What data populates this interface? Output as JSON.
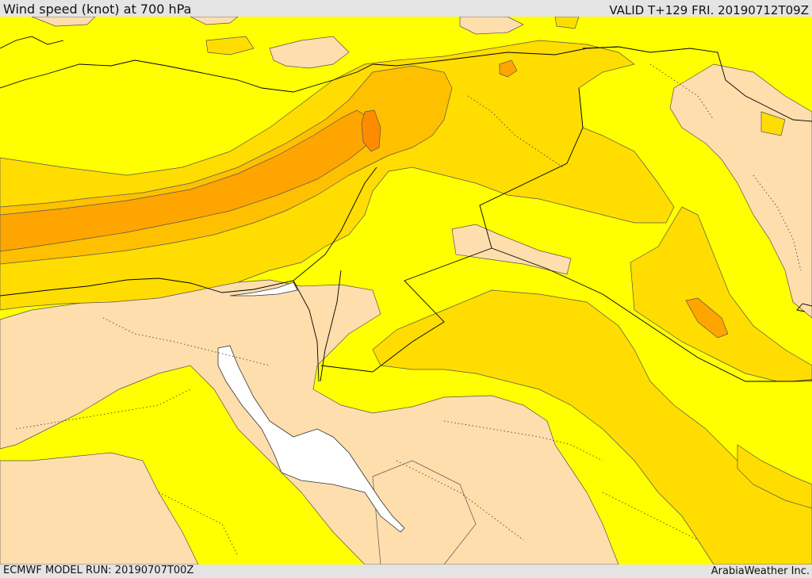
{
  "header": {
    "title": "Wind speed (knot) at 700 hPa",
    "valid": "VALID T+129 FRI. 20190712T09Z"
  },
  "footer": {
    "model_run": "ECMWF MODEL RUN: 20190707T00Z",
    "credit": "ArabiaWeather Inc."
  },
  "map": {
    "colors": {
      "calm": "#ffdead",
      "light": "#ffff00",
      "moderate": "#ffdd00",
      "fresh": "#ffc000",
      "strong": "#ffa500",
      "max": "#ff8c00",
      "sea": "#ffffff"
    }
  }
}
